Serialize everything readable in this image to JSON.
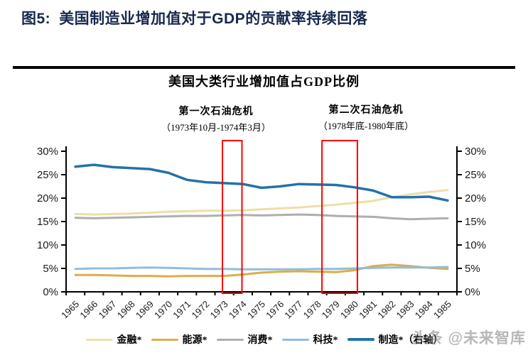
{
  "header": {
    "figure_label": "图5:",
    "title": "美国制造业增加值对于GDP的贡献率持续回落",
    "title_color": "#17294e"
  },
  "chart_data": {
    "type": "line",
    "title": "美国大类行业增加值占GDP比例",
    "categories": [
      "1965",
      "1966",
      "1967",
      "1968",
      "1969",
      "1970",
      "1971",
      "1972",
      "1973",
      "1974",
      "1975",
      "1976",
      "1977",
      "1978",
      "1979",
      "1980",
      "1981",
      "1982",
      "1983",
      "1984",
      "1985"
    ],
    "y_axis": {
      "min": 0,
      "max": 30,
      "tick_step": 5,
      "tick_labels": [
        "0%",
        "5%",
        "10%",
        "15%",
        "20%",
        "25%",
        "30%"
      ],
      "left": true,
      "right": true,
      "grid": false
    },
    "series": [
      {
        "key": "finance",
        "name": "金融*",
        "color": "#ecdfa6",
        "values": [
          16.6,
          16.5,
          16.6,
          16.7,
          16.9,
          17.1,
          17.2,
          17.3,
          17.3,
          17.4,
          17.6,
          17.8,
          18.0,
          18.3,
          18.6,
          19.0,
          19.4,
          20.2,
          20.8,
          21.3,
          21.7
        ]
      },
      {
        "key": "energy",
        "name": "能源*",
        "color": "#dcae48",
        "values": [
          3.6,
          3.6,
          3.5,
          3.4,
          3.4,
          3.3,
          3.4,
          3.4,
          3.4,
          3.7,
          4.1,
          4.3,
          4.4,
          4.3,
          4.2,
          4.6,
          5.5,
          5.8,
          5.5,
          5.1,
          4.9
        ]
      },
      {
        "key": "consumer",
        "name": "消费*",
        "color": "#aeaeae",
        "values": [
          15.8,
          15.7,
          15.8,
          15.9,
          16.0,
          16.1,
          16.2,
          16.2,
          16.3,
          16.4,
          16.3,
          16.4,
          16.5,
          16.4,
          16.2,
          16.1,
          16.0,
          15.7,
          15.5,
          15.6,
          15.7
        ]
      },
      {
        "key": "tech",
        "name": "科技*",
        "color": "#93bcdc",
        "values": [
          4.9,
          5.0,
          5.0,
          5.1,
          5.2,
          5.1,
          5.0,
          4.9,
          4.9,
          4.8,
          4.8,
          4.8,
          4.8,
          4.9,
          4.9,
          5.0,
          5.1,
          5.2,
          5.2,
          5.2,
          5.3
        ]
      },
      {
        "key": "manufacturing",
        "name": "制造*（右轴）",
        "color": "#2272a8",
        "values": [
          26.7,
          27.1,
          26.6,
          26.4,
          26.2,
          25.4,
          23.9,
          23.4,
          23.2,
          23.0,
          22.2,
          22.5,
          23.0,
          22.9,
          22.8,
          22.3,
          21.6,
          20.2,
          20.2,
          20.3,
          19.5
        ]
      }
    ],
    "annotations": [
      {
        "key": "first-oil-crisis",
        "title": "第一次石油危机",
        "subtitle": "（1973年10月-1974年3月）",
        "box_from_year": 1972.9,
        "box_to_year": 1973.95,
        "box_color": "#fe0000"
      },
      {
        "key": "second-oil-crisis",
        "title": "第二次石油危机",
        "subtitle": "（1978年底-1980年底）",
        "box_from_year": 1978.25,
        "box_to_year": 1980.15,
        "box_color": "#fe0000"
      }
    ],
    "legend_position": "bottom",
    "axis_color": "#000000",
    "tick_label_color": "#1a1a1a"
  },
  "watermark": {
    "text": "头条 @未来智库"
  }
}
